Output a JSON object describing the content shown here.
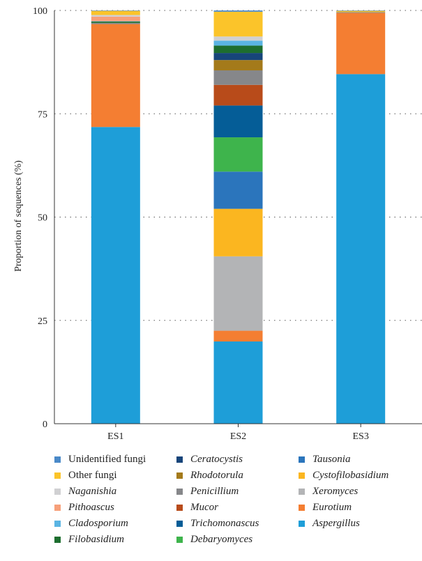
{
  "chart_data": {
    "type": "bar",
    "stacked": true,
    "categories": [
      "ES1",
      "ES2",
      "ES3"
    ],
    "ylabel": "Proportion of sequences (%)",
    "ylim": [
      0,
      100
    ],
    "yticks": [
      "0",
      "25",
      "50",
      "75",
      "100"
    ],
    "grid": "horizontal dotted",
    "legend_position": "bottom",
    "series": [
      {
        "name": "Aspergillus",
        "italic": true,
        "color": "#1E9ED8",
        "values": [
          71.8,
          19.9,
          84.6
        ]
      },
      {
        "name": "Eurotium",
        "italic": true,
        "color": "#F47E32",
        "values": [
          24.9,
          2.6,
          14.8
        ]
      },
      {
        "name": "Xeromyces",
        "italic": true,
        "color": "#B3B4B6",
        "values": [
          0,
          18.0,
          0
        ]
      },
      {
        "name": "Cystofilobasidium",
        "italic": true,
        "color": "#FBB620",
        "values": [
          0,
          11.5,
          0
        ]
      },
      {
        "name": "Tausonia",
        "italic": true,
        "color": "#2B75BC",
        "values": [
          0,
          9.0,
          0
        ]
      },
      {
        "name": "Debaryomyces",
        "italic": true,
        "color": "#3EB44C",
        "values": [
          0,
          8.3,
          0
        ]
      },
      {
        "name": "Trichomonascus",
        "italic": true,
        "color": "#055D97",
        "values": [
          0,
          7.7,
          0
        ]
      },
      {
        "name": "Mucor",
        "italic": true,
        "color": "#B84B1A",
        "values": [
          0,
          5.0,
          0
        ]
      },
      {
        "name": "Penicillium",
        "italic": true,
        "color": "#86878A",
        "values": [
          0.3,
          3.5,
          0.2
        ]
      },
      {
        "name": "Rhodotorula",
        "italic": true,
        "color": "#A47A1A",
        "values": [
          0,
          2.5,
          0
        ]
      },
      {
        "name": "Ceratocystis",
        "italic": true,
        "color": "#17457A",
        "values": [
          0,
          1.7,
          0
        ]
      },
      {
        "name": "Filobasidium",
        "italic": true,
        "color": "#1D6E2F",
        "values": [
          0.3,
          1.8,
          0
        ]
      },
      {
        "name": "Cladosporium",
        "italic": true,
        "color": "#5AB4E3",
        "values": [
          0.1,
          1.2,
          0
        ]
      },
      {
        "name": "Pithoascus",
        "italic": true,
        "color": "#F7A07A",
        "values": [
          1.1,
          0,
          0
        ]
      },
      {
        "name": "Naganishia",
        "italic": true,
        "color": "#D0D0D2",
        "values": [
          0.4,
          1.0,
          0
        ]
      },
      {
        "name": "Other fungi",
        "italic": false,
        "color": "#FBC42A",
        "values": [
          1.0,
          6.0,
          0.3
        ]
      },
      {
        "name": "Unidentified fungi",
        "italic": false,
        "color": "#4A89C8",
        "values": [
          0.1,
          0.3,
          0.1
        ]
      }
    ],
    "legend_order": [
      "Unidentified fungi",
      "Ceratocystis",
      "Tausonia",
      "Other fungi",
      "Rhodotorula",
      "Cystofilobasidium",
      "Naganishia",
      "Penicillium",
      "Xeromyces",
      "Pithoascus",
      "Mucor",
      "Eurotium",
      "Cladosporium",
      "Trichomonascus",
      "Aspergillus",
      "Filobasidium",
      "Debaryomyces"
    ]
  }
}
